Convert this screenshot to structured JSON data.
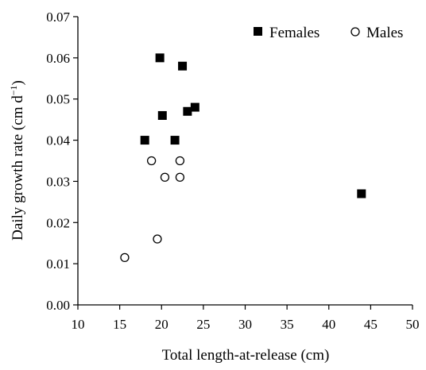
{
  "chart_data": {
    "type": "scatter",
    "title": "",
    "xlabel": "Total length-at-release (cm)",
    "ylabel_main": "Daily growth rate (cm d",
    "ylabel_sup": "−1",
    "ylabel_close": ")",
    "xlim": [
      10,
      50
    ],
    "ylim": [
      0.0,
      0.07
    ],
    "x_ticks": [
      10,
      15,
      20,
      25,
      30,
      35,
      40,
      45,
      50
    ],
    "y_ticks": [
      "0.00",
      "0.01",
      "0.02",
      "0.03",
      "0.04",
      "0.05",
      "0.06",
      "0.07"
    ],
    "grid": false,
    "legend_position": "top-right",
    "series": [
      {
        "name": "Females",
        "marker": "filled-square",
        "color": "#000000",
        "points": [
          {
            "x": 19.8,
            "y": 0.06
          },
          {
            "x": 22.5,
            "y": 0.058
          },
          {
            "x": 20.1,
            "y": 0.046
          },
          {
            "x": 23.1,
            "y": 0.047
          },
          {
            "x": 24.0,
            "y": 0.048
          },
          {
            "x": 18.0,
            "y": 0.04
          },
          {
            "x": 21.6,
            "y": 0.04
          },
          {
            "x": 43.9,
            "y": 0.027
          }
        ]
      },
      {
        "name": "Males",
        "marker": "open-circle",
        "color": "#000000",
        "points": [
          {
            "x": 18.8,
            "y": 0.035
          },
          {
            "x": 22.2,
            "y": 0.035
          },
          {
            "x": 20.4,
            "y": 0.031
          },
          {
            "x": 22.2,
            "y": 0.031
          },
          {
            "x": 19.5,
            "y": 0.016
          },
          {
            "x": 15.6,
            "y": 0.0115
          }
        ]
      }
    ]
  }
}
